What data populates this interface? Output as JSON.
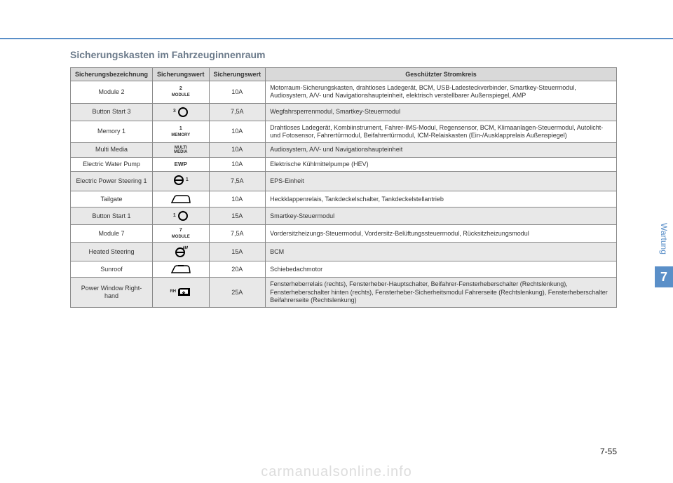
{
  "colors": {
    "accent": "#5a8fc8",
    "header_bg": "#d9d9d9",
    "row_alt": "#e8e8e8",
    "border": "#888888",
    "title": "#6b7a8a",
    "text": "#333333",
    "watermark": "#dddddd"
  },
  "title": "Sicherungskasten im Fahrzeuginnenraum",
  "side_tab": {
    "label": "Wartung",
    "chapter": "7"
  },
  "page_number": "7-55",
  "watermark": "carmanualsonline.info",
  "table": {
    "headers": {
      "name": "Sicherungsbezeichnung",
      "symbol": "Sicherungswert",
      "rating": "Sicherungswert",
      "circuit": "Geschützter Stromkreis"
    },
    "rows": [
      {
        "name": "Module 2",
        "symbol": {
          "type": "module",
          "num": "2",
          "text": "MODULE"
        },
        "rating": "10A",
        "desc": "Motorraum-Sicherungskasten, drahtloses Ladegerät, BCM, USB-Ladesteckverbinder, Smartkey-Steuermodul, Audiosystem, A/V- und Navigationshaupteinheit, elektrisch verstellbarer Außenspiegel, AMP"
      },
      {
        "name": "Button Start 3",
        "symbol": {
          "type": "ring",
          "num": "3",
          "pos": "left"
        },
        "rating": "7,5A",
        "desc": "Wegfahrsperrenmodul, Smartkey-Steuermodul"
      },
      {
        "name": "Memory 1",
        "symbol": {
          "type": "memory",
          "num": "1",
          "text": "MEMORY"
        },
        "rating": "10A",
        "desc": "Drahtloses Ladegerät, Kombiinstrument, Fahrer-IMS-Modul, Regensensor, BCM, Klimaanlagen-Steuermodul, Autolicht- und Fotosensor, Fahrertürmodul, Beifahrertürmodul, ICM-Relaiskasten (Ein-/Ausklapprelais Außenspiegel)"
      },
      {
        "name": "Multi Media",
        "symbol": {
          "type": "text2",
          "line1": "MULTI",
          "line2": "MEDIA"
        },
        "rating": "10A",
        "desc": "Audiosystem, A/V- und Navigationshaupteinheit"
      },
      {
        "name": "Electric Water Pump",
        "symbol": {
          "type": "text1",
          "text": "EWP"
        },
        "rating": "10A",
        "desc": "Elektrische Kühlmittelpumpe (HEV)"
      },
      {
        "name": "Electric Power Steering 1",
        "symbol": {
          "type": "wheel",
          "num": "1",
          "pos": "right"
        },
        "rating": "7,5A",
        "desc": "EPS-Einheit"
      },
      {
        "name": "Tailgate",
        "symbol": {
          "type": "tailgate"
        },
        "rating": "10A",
        "desc": "Heckklappenrelais, Tankdeckelschalter, Tankdeckelstellantrieb"
      },
      {
        "name": "Button Start 1",
        "symbol": {
          "type": "ring",
          "num": "1",
          "pos": "left"
        },
        "rating": "15A",
        "desc": "Smartkey-Steuermodul"
      },
      {
        "name": "Module 7",
        "symbol": {
          "type": "module",
          "num": "7",
          "text": "MODULE"
        },
        "rating": "7,5A",
        "desc": "Vordersitzheizungs-Steuermodul, Vordersitz-Belüftungssteuermodul, Rücksitzheizungsmodul"
      },
      {
        "name": "Heated Steering",
        "symbol": {
          "type": "heated-wheel"
        },
        "rating": "15A",
        "desc": "BCM"
      },
      {
        "name": "Sunroof",
        "symbol": {
          "type": "sunroof"
        },
        "rating": "20A",
        "desc": "Schiebedachmotor"
      },
      {
        "name": "Power Window Right-hand",
        "symbol": {
          "type": "window",
          "side": "RH"
        },
        "rating": "25A",
        "desc": "Fensterheberrelais (rechts), Fensterheber-Hauptschalter, Beifahrer-Fensterheberschalter (Rechtslenkung), Fensterheberschalter hinten (rechts), Fensterheber-Sicherheitsmodul Fahrerseite (Rechtslenkung), Fensterheberschalter Beifahrerseite (Rechtslenkung)"
      }
    ]
  }
}
